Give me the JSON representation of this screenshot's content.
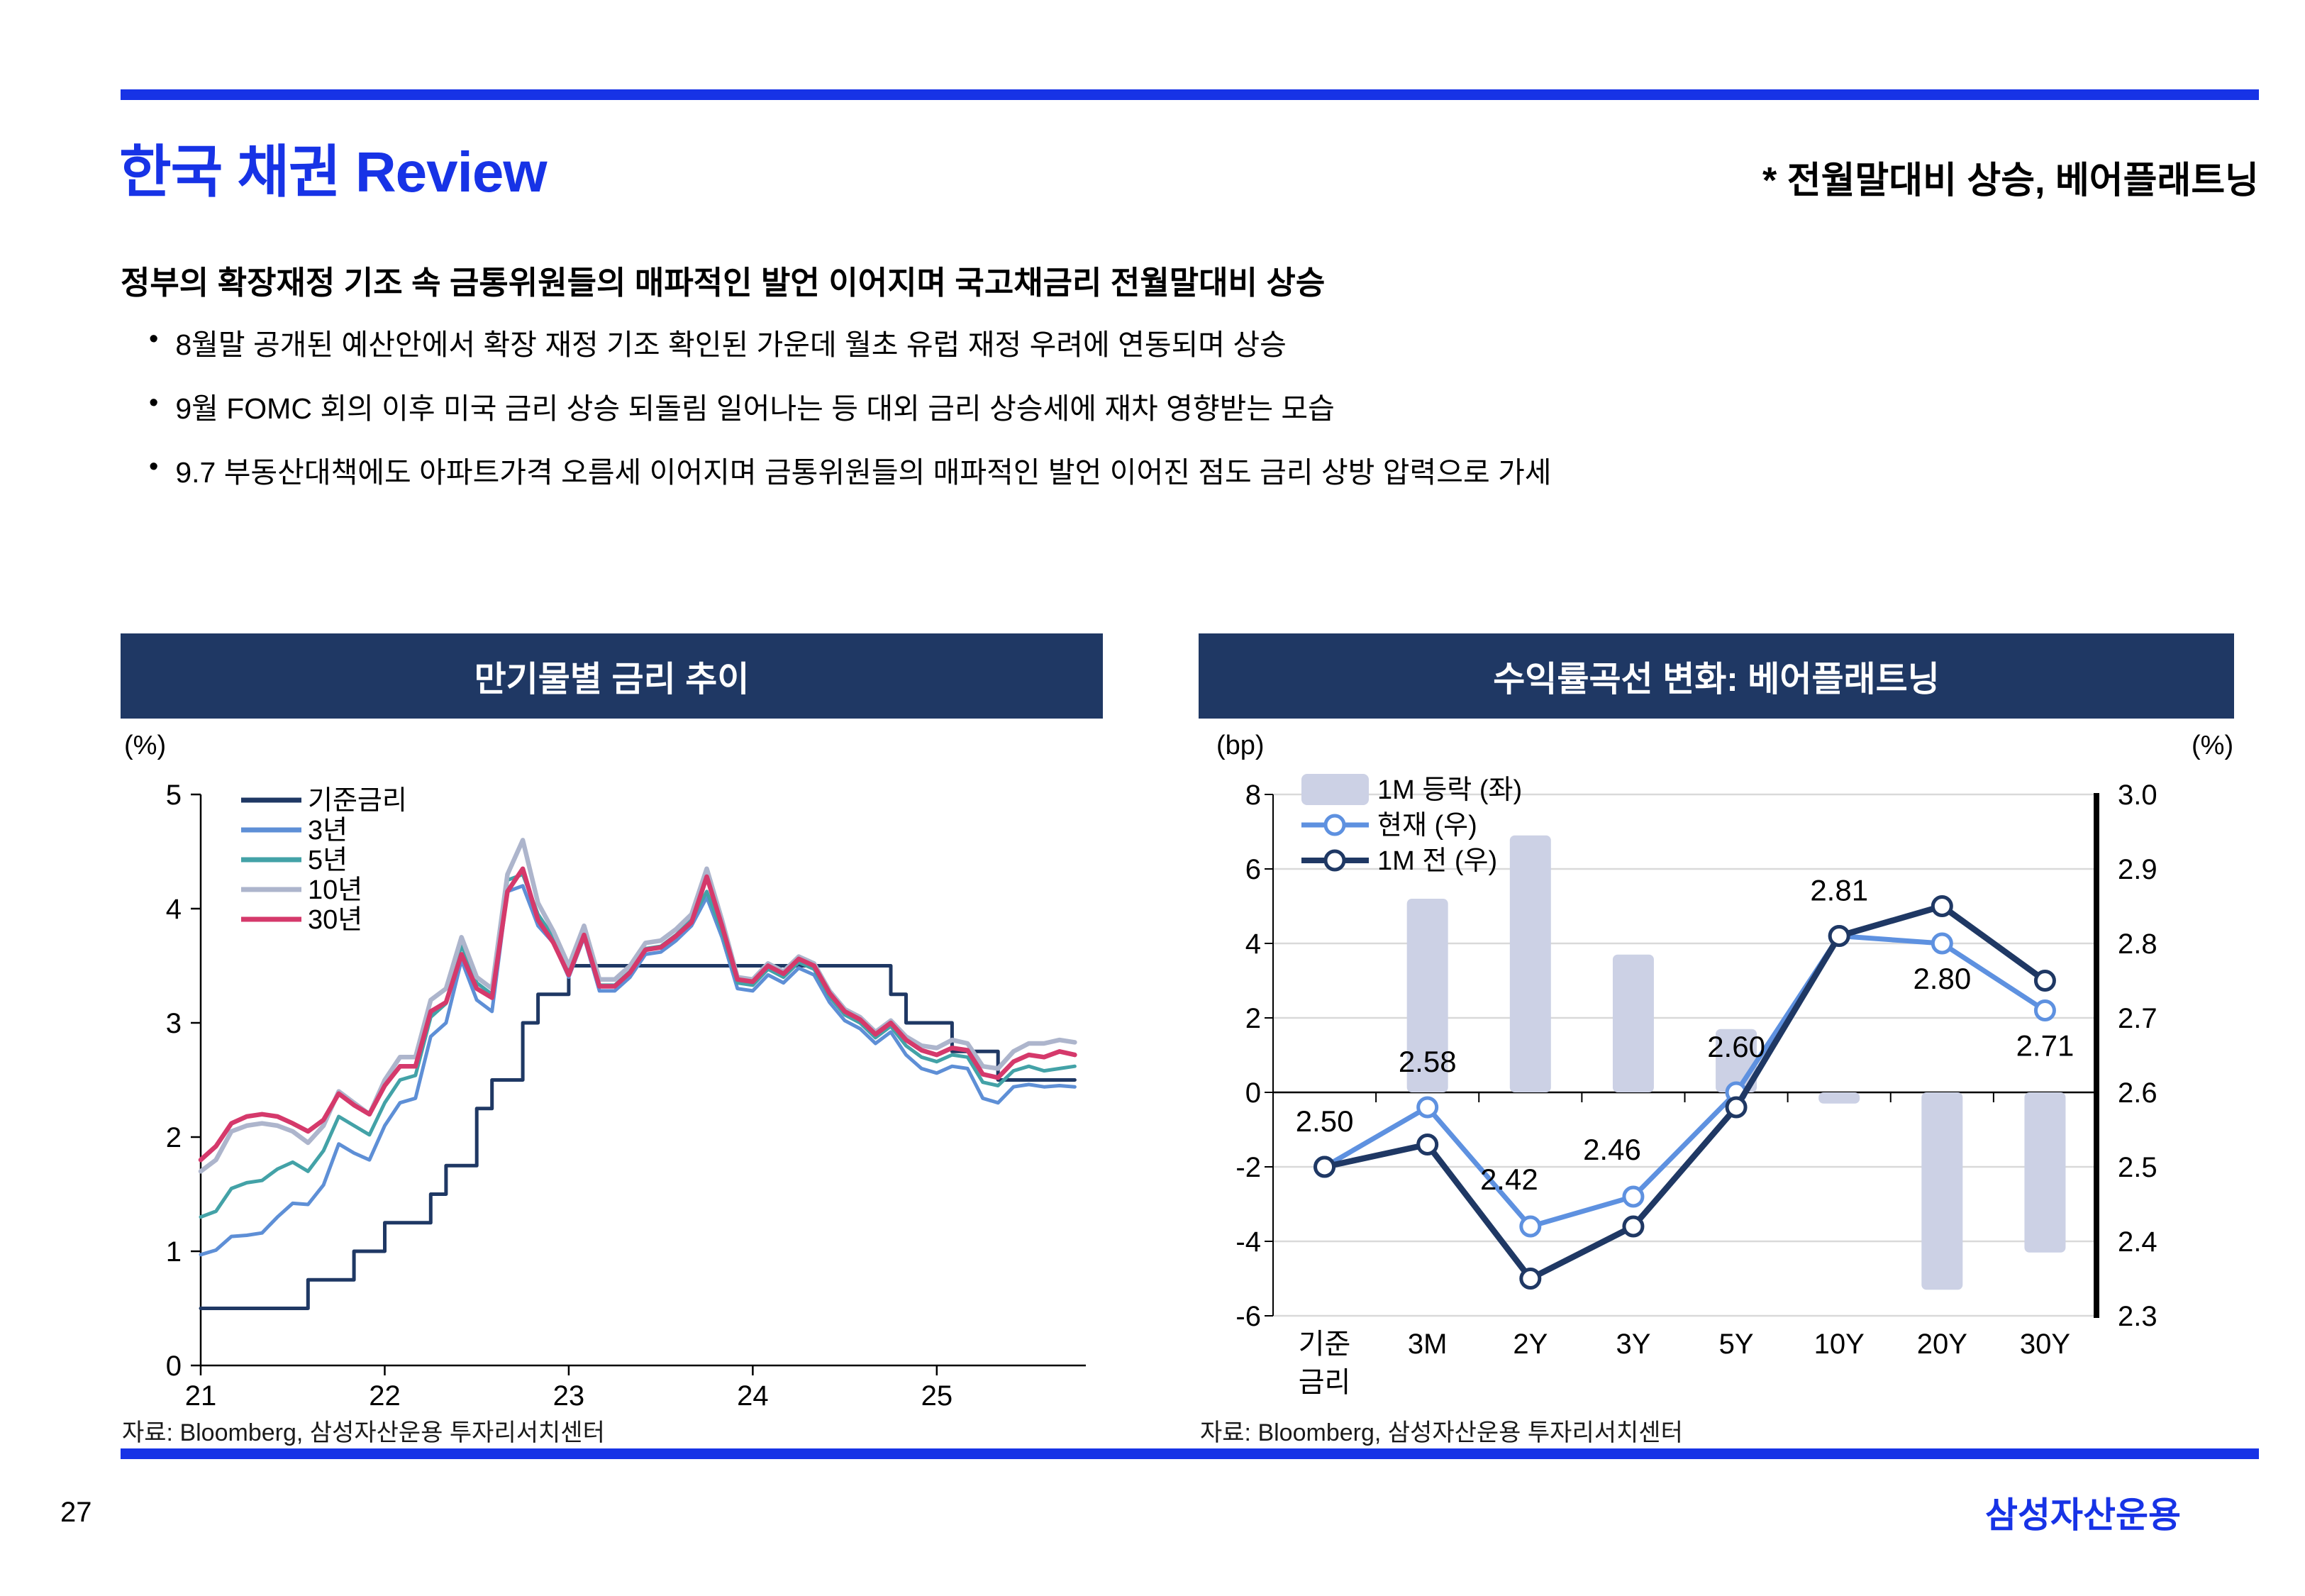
{
  "colors": {
    "accent": "#1733E6",
    "panel_header": "#1F3864",
    "grid": "#D9D9D9",
    "text": "#000000"
  },
  "header": {
    "title": "한국 채권 Review",
    "subtitle": "* 전월말대비 상승, 베어플래트닝"
  },
  "summary": {
    "bullet_char": "•",
    "heading": "정부의 확장재정 기조 속 금통위원들의 매파적인 발언 이어지며 국고채금리 전월말대비 상승",
    "bullets": [
      "8월말 공개된 예산안에서 확장 재정 기조 확인된 가운데 월초 유럽 재정 우려에 연동되며 상승",
      "9월 FOMC 회의 이후 미국 금리 상승 되돌림 일어나는 등 대외 금리 상승세에 재차 영향받는 모습",
      "9.7 부동산대책에도 아파트가격 오름세 이어지며 금통위원들의 매파적인 발언 이어진 점도 금리 상방 압력으로 가세"
    ]
  },
  "footer": {
    "page_number": "27",
    "logo": "삼성자산운용"
  },
  "chart_data": [
    {
      "type": "line",
      "panel_title": "만기물별 금리 추이",
      "unit_label": "(%)",
      "source": "자료: Bloomberg, 삼성자산운용 투자리서치센터",
      "xlim": [
        2021,
        2025.81
      ],
      "ylim": [
        0,
        5
      ],
      "y_ticks": [
        0,
        1,
        2,
        3,
        4,
        5
      ],
      "x_ticks": [
        2021,
        2022,
        2023,
        2024,
        2025
      ],
      "x_tick_labels": [
        "21",
        "22",
        "23",
        "24",
        "25"
      ],
      "grid": false,
      "legend_position": "top-left-inside",
      "x": [
        2021.0,
        2021.083,
        2021.167,
        2021.25,
        2021.333,
        2021.417,
        2021.5,
        2021.583,
        2021.667,
        2021.75,
        2021.833,
        2021.917,
        2022.0,
        2022.083,
        2022.167,
        2022.25,
        2022.333,
        2022.417,
        2022.5,
        2022.583,
        2022.667,
        2022.75,
        2022.833,
        2022.917,
        2023.0,
        2023.083,
        2023.167,
        2023.25,
        2023.333,
        2023.417,
        2023.5,
        2023.583,
        2023.667,
        2023.75,
        2023.833,
        2023.917,
        2024.0,
        2024.083,
        2024.167,
        2024.25,
        2024.333,
        2024.417,
        2024.5,
        2024.583,
        2024.667,
        2024.75,
        2024.833,
        2024.917,
        2025.0,
        2025.083,
        2025.167,
        2025.25,
        2025.333,
        2025.417,
        2025.5,
        2025.583,
        2025.667,
        2025.75
      ],
      "series": [
        {
          "name": "기준금리",
          "color": "#1F3864",
          "width": 5,
          "step": true,
          "values": [
            0.5,
            0.5,
            0.5,
            0.5,
            0.5,
            0.5,
            0.5,
            0.75,
            0.75,
            0.75,
            1.0,
            1.0,
            1.25,
            1.25,
            1.25,
            1.5,
            1.75,
            1.75,
            2.25,
            2.5,
            2.5,
            3.0,
            3.25,
            3.25,
            3.5,
            3.5,
            3.5,
            3.5,
            3.5,
            3.5,
            3.5,
            3.5,
            3.5,
            3.5,
            3.5,
            3.5,
            3.5,
            3.5,
            3.5,
            3.5,
            3.5,
            3.5,
            3.5,
            3.5,
            3.5,
            3.25,
            3.0,
            3.0,
            3.0,
            2.75,
            2.75,
            2.75,
            2.5,
            2.5,
            2.5,
            2.5,
            2.5,
            2.5
          ]
        },
        {
          "name": "3년",
          "color": "#5E8FD6",
          "width": 5,
          "step": false,
          "values": [
            0.97,
            1.01,
            1.13,
            1.14,
            1.16,
            1.3,
            1.42,
            1.41,
            1.58,
            1.94,
            1.86,
            1.8,
            2.1,
            2.3,
            2.34,
            2.88,
            3.0,
            3.55,
            3.2,
            3.1,
            4.15,
            4.2,
            3.85,
            3.7,
            3.4,
            3.75,
            3.28,
            3.28,
            3.4,
            3.6,
            3.62,
            3.72,
            3.85,
            4.1,
            3.75,
            3.3,
            3.28,
            3.42,
            3.35,
            3.48,
            3.42,
            3.18,
            3.02,
            2.95,
            2.82,
            2.92,
            2.72,
            2.6,
            2.56,
            2.62,
            2.6,
            2.34,
            2.3,
            2.44,
            2.46,
            2.44,
            2.45,
            2.44
          ]
        },
        {
          "name": "5년",
          "color": "#43A2A7",
          "width": 5,
          "step": false,
          "values": [
            1.3,
            1.35,
            1.55,
            1.6,
            1.62,
            1.72,
            1.78,
            1.7,
            1.88,
            2.18,
            2.1,
            2.02,
            2.3,
            2.5,
            2.54,
            3.05,
            3.17,
            3.68,
            3.35,
            3.25,
            4.25,
            4.3,
            3.95,
            3.75,
            3.45,
            3.8,
            3.33,
            3.33,
            3.45,
            3.65,
            3.67,
            3.77,
            3.9,
            4.15,
            3.8,
            3.35,
            3.33,
            3.47,
            3.4,
            3.53,
            3.47,
            3.23,
            3.07,
            3.0,
            2.87,
            2.97,
            2.8,
            2.7,
            2.66,
            2.72,
            2.7,
            2.48,
            2.45,
            2.58,
            2.62,
            2.58,
            2.6,
            2.62
          ]
        },
        {
          "name": "10년",
          "color": "#ADB5CC",
          "width": 6.5,
          "step": false,
          "values": [
            1.7,
            1.8,
            2.05,
            2.1,
            2.12,
            2.1,
            2.05,
            1.95,
            2.1,
            2.4,
            2.3,
            2.2,
            2.5,
            2.7,
            2.7,
            3.2,
            3.3,
            3.75,
            3.4,
            3.3,
            4.3,
            4.6,
            4.05,
            3.8,
            3.5,
            3.85,
            3.38,
            3.38,
            3.5,
            3.7,
            3.72,
            3.82,
            3.95,
            4.35,
            3.9,
            3.4,
            3.38,
            3.52,
            3.45,
            3.58,
            3.52,
            3.28,
            3.12,
            3.05,
            2.92,
            3.02,
            2.88,
            2.8,
            2.78,
            2.85,
            2.82,
            2.62,
            2.6,
            2.75,
            2.82,
            2.82,
            2.85,
            2.83
          ]
        },
        {
          "name": "30년",
          "color": "#D5396B",
          "width": 6.5,
          "step": false,
          "values": [
            1.8,
            1.92,
            2.12,
            2.18,
            2.2,
            2.18,
            2.12,
            2.05,
            2.15,
            2.38,
            2.28,
            2.2,
            2.45,
            2.62,
            2.62,
            3.1,
            3.18,
            3.6,
            3.3,
            3.22,
            4.15,
            4.35,
            3.9,
            3.7,
            3.42,
            3.77,
            3.32,
            3.32,
            3.44,
            3.64,
            3.66,
            3.76,
            3.88,
            4.28,
            3.85,
            3.38,
            3.36,
            3.5,
            3.43,
            3.56,
            3.5,
            3.26,
            3.1,
            3.03,
            2.9,
            3.0,
            2.85,
            2.76,
            2.72,
            2.78,
            2.76,
            2.55,
            2.52,
            2.66,
            2.72,
            2.7,
            2.75,
            2.72
          ]
        }
      ]
    },
    {
      "type": "bar+line",
      "panel_title": "수익률곡선 변화: 베어플래트닝",
      "left_unit_label": "(bp)",
      "right_unit_label": "(%)",
      "source": "자료: Bloomberg, 삼성자산운용 투자리서치센터",
      "categories": [
        "기준금리",
        "3M",
        "2Y",
        "3Y",
        "5Y",
        "10Y",
        "20Y",
        "30Y"
      ],
      "category_labels": [
        [
          "기준",
          "금리"
        ],
        [
          "3M"
        ],
        [
          "2Y"
        ],
        [
          "3Y"
        ],
        [
          "5Y"
        ],
        [
          "10Y"
        ],
        [
          "20Y"
        ],
        [
          "30Y"
        ]
      ],
      "left_axis": {
        "min": -6,
        "max": 8,
        "ticks": [
          8,
          6,
          4,
          2,
          0,
          -2,
          -4,
          -6
        ]
      },
      "right_axis": {
        "min": 2.3,
        "max": 3.0,
        "ticks": [
          "3.0",
          "2.9",
          "2.8",
          "2.7",
          "2.6",
          "2.5",
          "2.4",
          "2.3"
        ]
      },
      "bars": {
        "name": "1M 등락 (좌)",
        "color": "#CCD1E5",
        "values_bp": [
          0,
          5.2,
          6.9,
          3.7,
          1.7,
          -0.3,
          -5.3,
          -4.3
        ]
      },
      "lines": [
        {
          "name": "현재 (우)",
          "color": "#5E91E0",
          "values_pct": [
            2.5,
            2.58,
            2.42,
            2.46,
            2.6,
            2.81,
            2.8,
            2.71
          ],
          "labels": [
            "2.50",
            "2.58",
            "2.42",
            "2.46",
            "2.60",
            "2.81",
            "2.80",
            "2.71"
          ]
        },
        {
          "name": "1M 전 (우)",
          "color": "#1F3864",
          "values_pct": [
            2.5,
            2.53,
            2.35,
            2.42,
            2.58,
            2.81,
            2.85,
            2.75
          ]
        }
      ],
      "label_pos": [
        "above",
        "above",
        "above-left",
        "above-left",
        "above",
        "above",
        "below",
        "below"
      ]
    }
  ]
}
